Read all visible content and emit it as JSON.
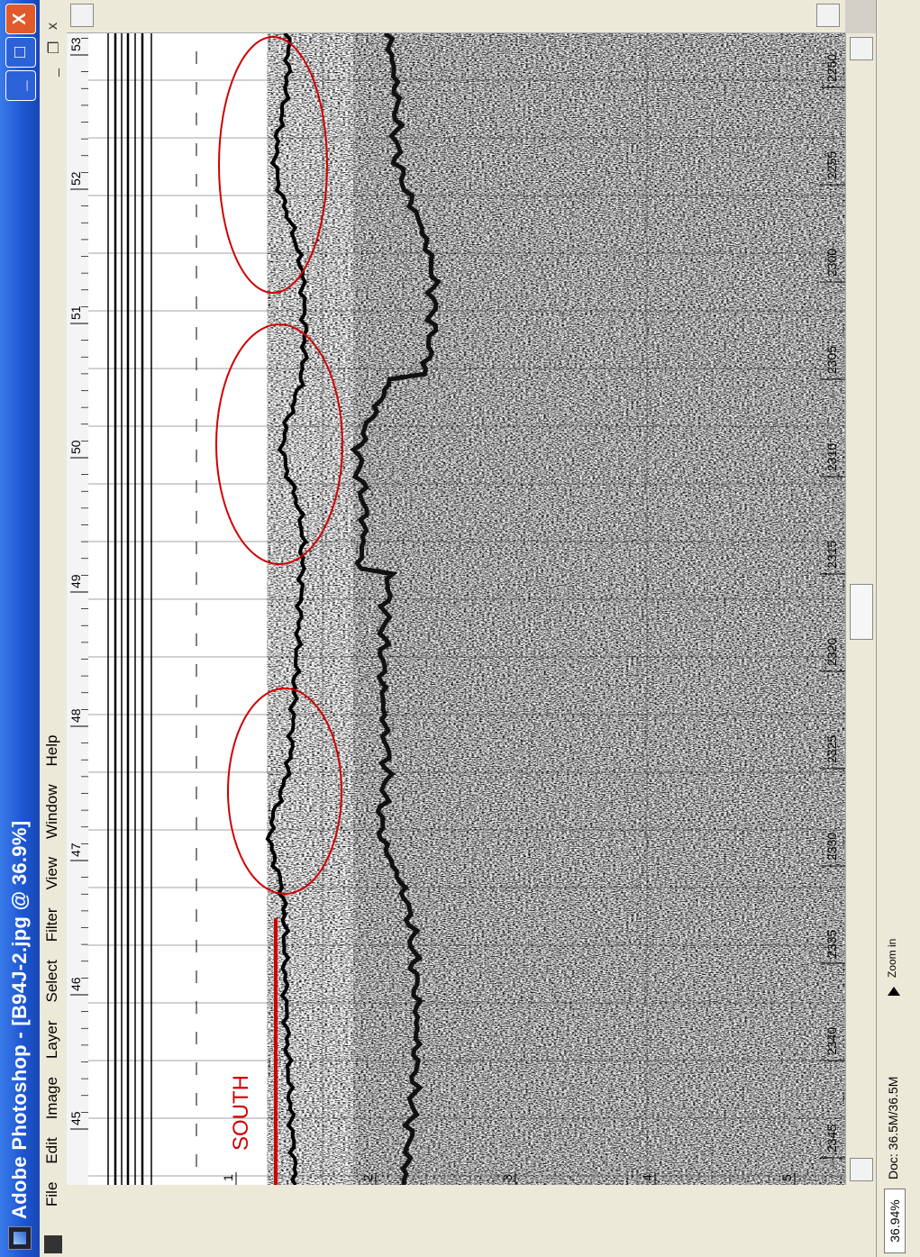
{
  "window": {
    "title": "Adobe Photoshop - [B94J-2.jpg @ 36.9%]"
  },
  "menu": {
    "items": [
      "File",
      "Edit",
      "Image",
      "Layer",
      "Select",
      "Filter",
      "View",
      "Window",
      "Help"
    ]
  },
  "controls": {
    "minimize": "_",
    "maximize": "□",
    "close": "X",
    "doc_minimize": "_",
    "doc_restore": "❐",
    "doc_close": "x"
  },
  "ruler_top": [
    "45",
    "46",
    "47",
    "48",
    "49",
    "50",
    "51",
    "52",
    "53"
  ],
  "ruler_left": [
    "1",
    "2",
    "3",
    "4",
    "5"
  ],
  "time_axis": [
    "2345",
    "2340",
    "2335",
    "2330",
    "2325",
    "2320",
    "2315",
    "2310",
    "2305",
    "2300",
    "2255",
    "2250"
  ],
  "annotation": {
    "direction_label": "SOUTH",
    "accent_color": "#d00000"
  },
  "status": {
    "zoom": "36.94%",
    "doc": "Doc: 36.5M/36.5M",
    "hint": "Zoom in"
  }
}
